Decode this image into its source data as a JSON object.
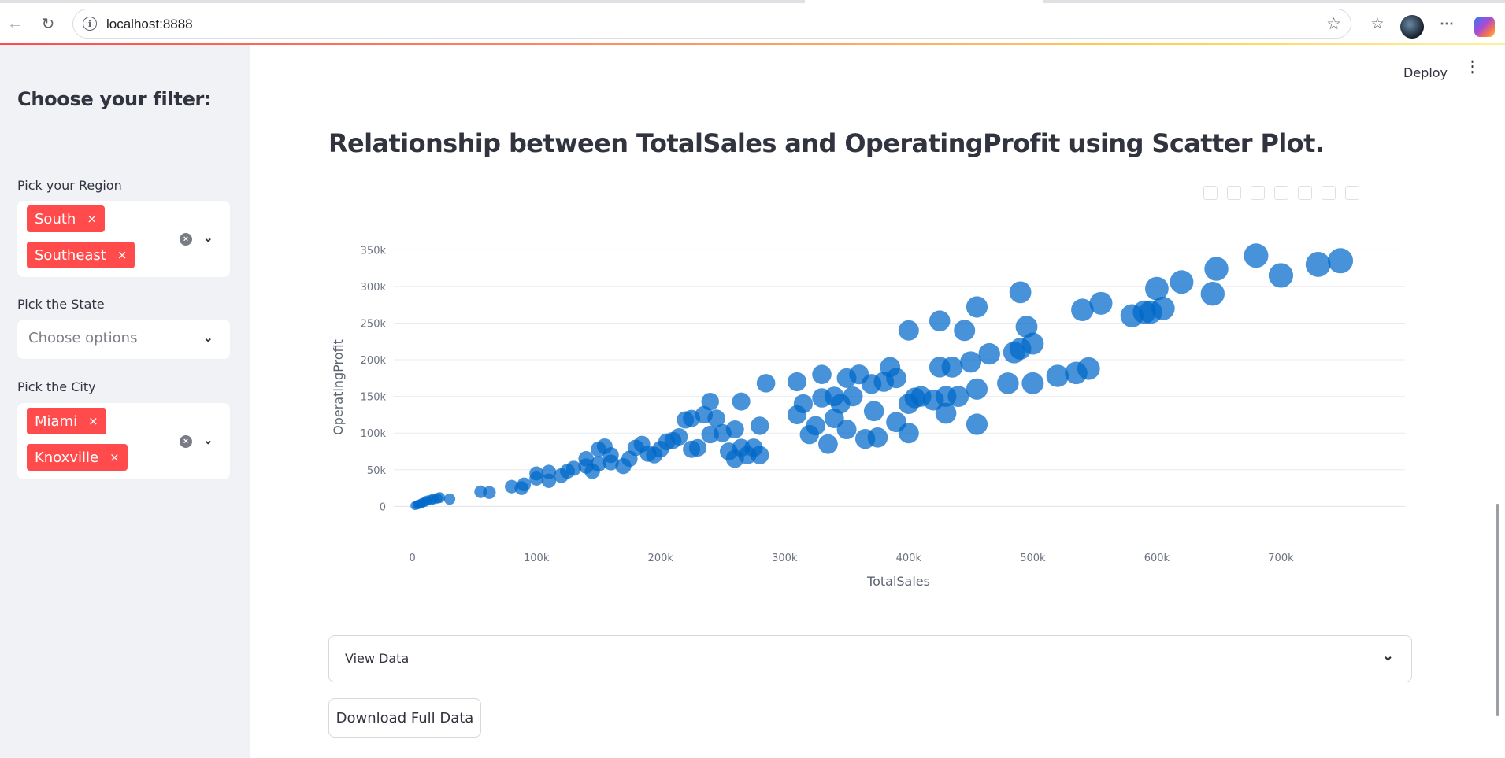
{
  "browser": {
    "url": "localhost:8888",
    "icons": [
      "back-icon",
      "reload-icon",
      "info-icon",
      "star-icon",
      "favorites-icon",
      "profile-avatar",
      "more-icon",
      "copilot-icon"
    ]
  },
  "header": {
    "deploy_label": "Deploy",
    "menu_icon": "kebab-icon"
  },
  "sidebar": {
    "title": "Choose your filter:",
    "region": {
      "label": "Pick your Region",
      "selected": [
        "South",
        "Southeast"
      ]
    },
    "state": {
      "label": "Pick the State",
      "placeholder": "Choose options"
    },
    "city": {
      "label": "Pick the City",
      "selected": [
        "Miami",
        "Knoxville"
      ]
    },
    "tag_remove_glyph": "×",
    "colors": {
      "tag": "#ff4b4b",
      "background": "#f0f2f6"
    }
  },
  "main": {
    "title": "Relationship between TotalSales and OperatingProfit using Scatter Plot.",
    "expander_label": "View Data",
    "download_label": "Download Full Data"
  },
  "chart_data": {
    "type": "scatter",
    "title": "",
    "xlabel": "TotalSales",
    "ylabel": "OperatingProfit",
    "xlim": [
      -15000,
      800000
    ],
    "ylim": [
      -20000,
      360000
    ],
    "x_ticks": [
      "0",
      "100k",
      "200k",
      "300k",
      "400k",
      "500k",
      "600k",
      "700k"
    ],
    "x_tick_values": [
      0,
      100000,
      200000,
      300000,
      400000,
      500000,
      600000,
      700000
    ],
    "y_ticks": [
      "0",
      "50k",
      "100k",
      "150k",
      "200k",
      "250k",
      "300k",
      "350k"
    ],
    "y_tick_values": [
      0,
      50000,
      100000,
      150000,
      200000,
      250000,
      300000,
      350000
    ],
    "grid": true,
    "marker_size_encodes": "TotalSales",
    "color": "#0068c9",
    "points": [
      [
        2000,
        1000
      ],
      [
        4000,
        2000
      ],
      [
        5000,
        3000
      ],
      [
        7000,
        3500
      ],
      [
        8000,
        5000
      ],
      [
        10000,
        6000
      ],
      [
        12000,
        8000
      ],
      [
        15000,
        9000
      ],
      [
        17000,
        10000
      ],
      [
        20000,
        11000
      ],
      [
        22000,
        12000
      ],
      [
        30000,
        10000
      ],
      [
        55000,
        20000
      ],
      [
        62000,
        19000
      ],
      [
        80000,
        27000
      ],
      [
        88000,
        25000
      ],
      [
        90000,
        30000
      ],
      [
        100000,
        45000
      ],
      [
        100000,
        38000
      ],
      [
        110000,
        47000
      ],
      [
        110000,
        35000
      ],
      [
        120000,
        42000
      ],
      [
        125000,
        48000
      ],
      [
        130000,
        52000
      ],
      [
        140000,
        65000
      ],
      [
        140000,
        55000
      ],
      [
        145000,
        48000
      ],
      [
        150000,
        78000
      ],
      [
        150000,
        58000
      ],
      [
        155000,
        82000
      ],
      [
        160000,
        70000
      ],
      [
        160000,
        60000
      ],
      [
        170000,
        55000
      ],
      [
        175000,
        65000
      ],
      [
        180000,
        80000
      ],
      [
        185000,
        85000
      ],
      [
        190000,
        72000
      ],
      [
        195000,
        70000
      ],
      [
        200000,
        78000
      ],
      [
        205000,
        88000
      ],
      [
        210000,
        90000
      ],
      [
        215000,
        95000
      ],
      [
        220000,
        118000
      ],
      [
        225000,
        120000
      ],
      [
        225000,
        78000
      ],
      [
        230000,
        80000
      ],
      [
        235000,
        125000
      ],
      [
        240000,
        143000
      ],
      [
        240000,
        98000
      ],
      [
        245000,
        120000
      ],
      [
        250000,
        100000
      ],
      [
        255000,
        75000
      ],
      [
        260000,
        65000
      ],
      [
        260000,
        105000
      ],
      [
        265000,
        80000
      ],
      [
        265000,
        143000
      ],
      [
        270000,
        70000
      ],
      [
        275000,
        80000
      ],
      [
        280000,
        110000
      ],
      [
        280000,
        70000
      ],
      [
        285000,
        168000
      ],
      [
        310000,
        125000
      ],
      [
        310000,
        170000
      ],
      [
        315000,
        140000
      ],
      [
        320000,
        98000
      ],
      [
        325000,
        110000
      ],
      [
        330000,
        148000
      ],
      [
        330000,
        180000
      ],
      [
        335000,
        85000
      ],
      [
        340000,
        150000
      ],
      [
        340000,
        120000
      ],
      [
        345000,
        140000
      ],
      [
        350000,
        175000
      ],
      [
        350000,
        105000
      ],
      [
        355000,
        150000
      ],
      [
        360000,
        180000
      ],
      [
        365000,
        92000
      ],
      [
        370000,
        167000
      ],
      [
        372000,
        130000
      ],
      [
        375000,
        94000
      ],
      [
        380000,
        170000
      ],
      [
        385000,
        190000
      ],
      [
        390000,
        115000
      ],
      [
        390000,
        175000
      ],
      [
        400000,
        100000
      ],
      [
        400000,
        140000
      ],
      [
        400000,
        240000
      ],
      [
        405000,
        148000
      ],
      [
        410000,
        150000
      ],
      [
        420000,
        145000
      ],
      [
        425000,
        190000
      ],
      [
        425000,
        253000
      ],
      [
        430000,
        127000
      ],
      [
        430000,
        150000
      ],
      [
        435000,
        190000
      ],
      [
        440000,
        150000
      ],
      [
        445000,
        240000
      ],
      [
        450000,
        197000
      ],
      [
        455000,
        112000
      ],
      [
        455000,
        160000
      ],
      [
        455000,
        272000
      ],
      [
        465000,
        208000
      ],
      [
        480000,
        168000
      ],
      [
        485000,
        210000
      ],
      [
        490000,
        292000
      ],
      [
        490000,
        215000
      ],
      [
        495000,
        245000
      ],
      [
        500000,
        222000
      ],
      [
        500000,
        168000
      ],
      [
        520000,
        178000
      ],
      [
        535000,
        182000
      ],
      [
        540000,
        268000
      ],
      [
        545000,
        188000
      ],
      [
        555000,
        277000
      ],
      [
        580000,
        260000
      ],
      [
        590000,
        265000
      ],
      [
        595000,
        265000
      ],
      [
        600000,
        297000
      ],
      [
        605000,
        270000
      ],
      [
        620000,
        306000
      ],
      [
        645000,
        290000
      ],
      [
        648000,
        324000
      ],
      [
        680000,
        342000
      ],
      [
        700000,
        315000
      ],
      [
        730000,
        330000
      ],
      [
        748000,
        335000
      ]
    ]
  }
}
